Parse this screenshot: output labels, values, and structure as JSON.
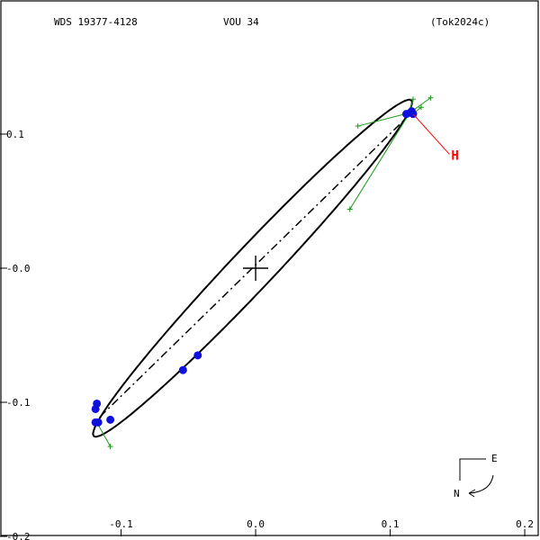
{
  "header": {
    "wds": "WDS 19377-4128",
    "name": "VOU  34",
    "ref": "(Tok2024c)"
  },
  "chart_data": {
    "type": "scatter",
    "title": "",
    "xlabel": "",
    "ylabel": "",
    "xlim": [
      -0.19,
      0.21
    ],
    "ylim": [
      -0.2,
      0.2
    ],
    "x_ticks": [
      -0.1,
      0.0,
      0.1,
      0.2
    ],
    "x_tick_labels": [
      "-0.1",
      "0.0",
      "0.1",
      "0.2"
    ],
    "y_ticks": [
      0.1,
      0.0,
      -0.1,
      -0.2
    ],
    "y_tick_labels": [
      "0.1",
      "-0.0",
      "-0.1",
      "-0.2"
    ],
    "primary": [
      0.0,
      0.0
    ],
    "orbit": {
      "center": [
        -0.0023,
        0.0
      ],
      "semi_major": 0.172,
      "semi_minor": 0.0157,
      "angle_deg": 46.7
    },
    "line_of_nodes": [
      [
        0.116,
        0.116
      ],
      [
        -0.12,
        -0.115
      ]
    ],
    "observations": [
      {
        "x": 0.115,
        "y": 0.116
      },
      {
        "x": 0.116,
        "y": 0.117
      },
      {
        "x": 0.112,
        "y": 0.115
      },
      {
        "x": 0.117,
        "y": 0.115
      },
      {
        "x": -0.043,
        "y": -0.065
      },
      {
        "x": -0.054,
        "y": -0.076
      },
      {
        "x": -0.108,
        "y": -0.113
      },
      {
        "x": -0.118,
        "y": -0.101
      },
      {
        "x": -0.119,
        "y": -0.105
      },
      {
        "x": -0.117,
        "y": -0.115
      },
      {
        "x": -0.119,
        "y": -0.115
      }
    ],
    "residual_marks": [
      {
        "from": [
          0.115,
          0.116
        ],
        "to": [
          0.076,
          0.106
        ]
      },
      {
        "from": [
          0.116,
          0.117
        ],
        "to": [
          0.13,
          0.127
        ]
      },
      {
        "from": [
          0.114,
          0.115
        ],
        "to": [
          0.117,
          0.126
        ]
      },
      {
        "from": [
          0.114,
          0.115
        ],
        "to": [
          0.07,
          0.044
        ]
      },
      {
        "from": [
          0.117,
          0.115
        ],
        "to": [
          0.123,
          0.12
        ]
      },
      {
        "from": [
          -0.118,
          -0.115
        ],
        "to": [
          -0.108,
          -0.133
        ]
      }
    ],
    "highlight": {
      "label": "H",
      "from": [
        0.117,
        0.115
      ],
      "to": [
        0.144,
        0.085
      ]
    },
    "orientation": {
      "east": "E",
      "north": "N"
    },
    "colors": {
      "orbit": "#000000",
      "observation": "#1010dd",
      "residual": "#1a9a1a",
      "highlight": "#ff0000"
    }
  }
}
